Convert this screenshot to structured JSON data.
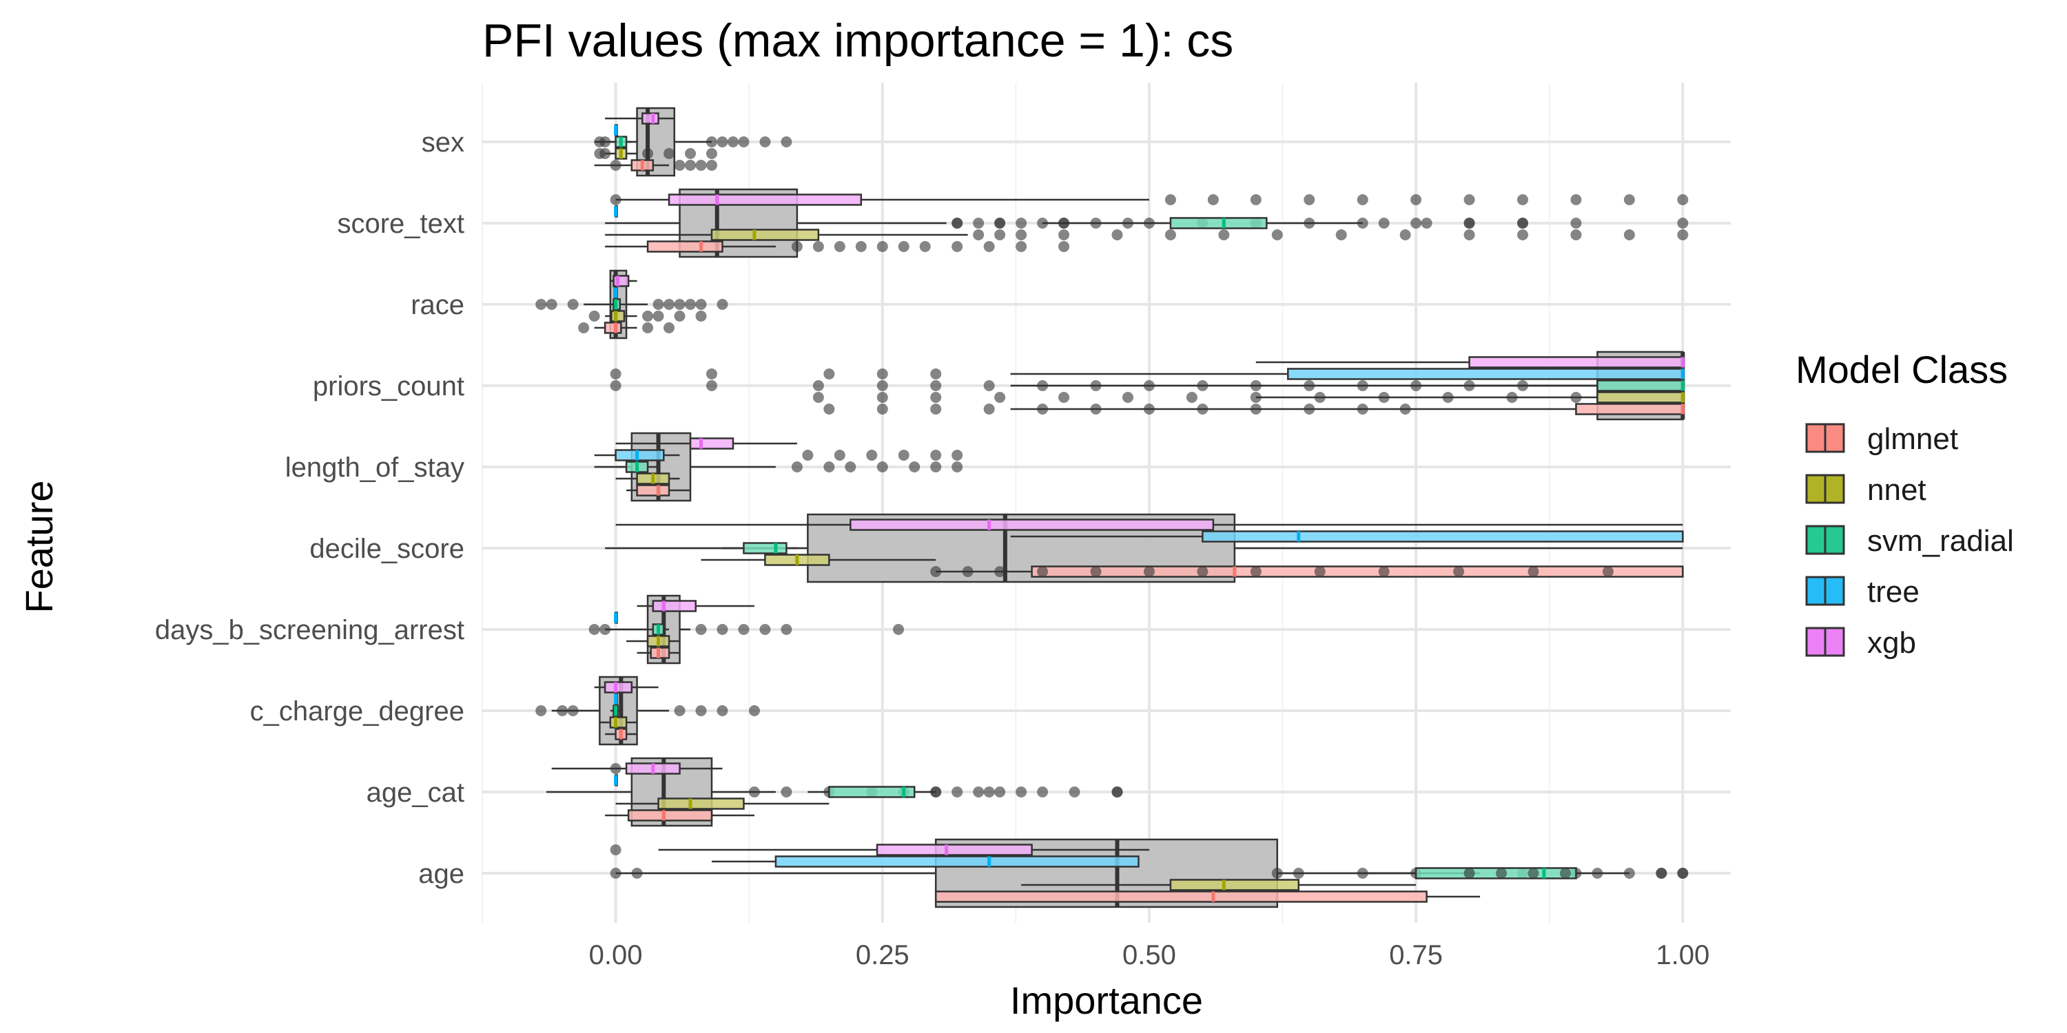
{
  "chart_data": {
    "type": "boxplot",
    "title": "PFI values (max importance = 1): cs",
    "xlabel": "Importance",
    "ylabel": "Feature",
    "xlim": [
      -0.125,
      1.045
    ],
    "x_ticks": [
      0.0,
      0.25,
      0.5,
      0.75,
      1.0
    ],
    "x_tick_labels": [
      "0.00",
      "0.25",
      "0.50",
      "0.75",
      "1.00"
    ],
    "categories": [
      "sex",
      "score_text",
      "race",
      "priors_count",
      "length_of_stay",
      "decile_score",
      "days_b_screening_arrest",
      "c_charge_degree",
      "age_cat",
      "age"
    ],
    "grid": true,
    "legend": {
      "title": "Model Class",
      "position": "right",
      "entries": [
        {
          "name": "glmnet",
          "color": "#F8766D"
        },
        {
          "name": "nnet",
          "color": "#A3A500"
        },
        {
          "name": "svm_radial",
          "color": "#00BF7D"
        },
        {
          "name": "tree",
          "color": "#00B0F6"
        },
        {
          "name": "xgb",
          "color": "#E76BF3"
        }
      ]
    },
    "overall_color": "#bfbfbf",
    "series": [
      {
        "name": "overall",
        "boxes": {
          "sex": {
            "wmin": -0.02,
            "q1": 0.02,
            "med": 0.03,
            "q3": 0.055,
            "wmax": 0.09,
            "outliers": [
              -0.015,
              -0.01,
              0.09,
              0.1,
              0.11,
              0.12,
              0.14,
              0.16
            ]
          },
          "score_text": {
            "wmin": -0.01,
            "q1": 0.06,
            "med": 0.095,
            "q3": 0.17,
            "wmax": 0.31,
            "outliers": [
              0.32,
              0.34,
              0.36,
              0.38,
              0.4,
              0.42,
              0.45,
              0.5,
              0.55,
              0.6,
              0.65,
              0.7,
              0.75,
              0.8,
              0.85,
              0.9,
              1.0
            ]
          },
          "race": {
            "wmin": -0.03,
            "q1": -0.005,
            "med": 0.0,
            "q3": 0.01,
            "wmax": 0.03,
            "outliers": [
              -0.07,
              -0.06,
              -0.04,
              0.04,
              0.05,
              0.06,
              0.07,
              0.08,
              0.1
            ]
          },
          "priors_count": {
            "wmin": 0.37,
            "q1": 0.92,
            "med": 1.0,
            "q3": 1.0,
            "wmax": 1.0,
            "outliers": [
              0.0,
              0.09,
              0.19,
              0.25,
              0.3,
              0.35,
              0.4,
              0.45,
              0.5,
              0.55,
              0.6,
              0.65,
              0.7,
              0.75,
              0.8,
              0.85
            ]
          },
          "length_of_stay": {
            "wmin": -0.02,
            "q1": 0.015,
            "med": 0.04,
            "q3": 0.07,
            "wmax": 0.15,
            "outliers": [
              0.17,
              0.2,
              0.22,
              0.25,
              0.28,
              0.3,
              0.32
            ]
          },
          "decile_score": {
            "wmin": -0.01,
            "q1": 0.18,
            "med": 0.365,
            "q3": 0.58,
            "wmax": 1.0,
            "outliers": []
          },
          "days_b_screening_arrest": {
            "wmin": -0.01,
            "q1": 0.03,
            "med": 0.045,
            "q3": 0.06,
            "wmax": 0.07,
            "outliers": [
              -0.02,
              -0.01,
              0.08,
              0.1,
              0.12,
              0.14,
              0.16,
              0.265
            ]
          },
          "c_charge_degree": {
            "wmin": -0.06,
            "q1": -0.015,
            "med": 0.005,
            "q3": 0.02,
            "wmax": 0.05,
            "outliers": [
              -0.07,
              -0.05,
              -0.04,
              0.06,
              0.08,
              0.1,
              0.13
            ]
          },
          "age_cat": {
            "wmin": -0.065,
            "q1": 0.015,
            "med": 0.045,
            "q3": 0.09,
            "wmax": 0.15,
            "outliers": [
              0.13,
              0.16,
              0.2,
              0.24,
              0.27,
              0.3,
              0.35,
              0.4,
              0.47
            ]
          },
          "age": {
            "wmin": 0.0,
            "q1": 0.3,
            "med": 0.47,
            "q3": 0.62,
            "wmax": 0.81,
            "outliers": [
              0.0,
              0.02,
              0.62,
              0.64,
              0.7,
              0.75,
              0.8,
              0.85,
              0.9,
              0.98,
              1.0
            ]
          }
        }
      },
      {
        "name": "glmnet",
        "boxes": {
          "sex": {
            "wmin": -0.02,
            "q1": 0.015,
            "med": 0.025,
            "q3": 0.035,
            "wmax": 0.05,
            "outliers": [
              0.0,
              0.06,
              0.07,
              0.08,
              0.09
            ]
          },
          "score_text": {
            "wmin": -0.01,
            "q1": 0.03,
            "med": 0.08,
            "q3": 0.1,
            "wmax": 0.15,
            "outliers": [
              0.17,
              0.19,
              0.21,
              0.23,
              0.25,
              0.27,
              0.29,
              0.32,
              0.35,
              0.38,
              0.42
            ]
          },
          "race": {
            "wmin": -0.02,
            "q1": -0.01,
            "med": 0.0,
            "q3": 0.005,
            "wmax": 0.02,
            "outliers": [
              -0.03,
              0.03,
              0.05
            ]
          },
          "priors_count": {
            "wmin": 0.37,
            "q1": 0.9,
            "med": 1.0,
            "q3": 1.0,
            "wmax": 1.0,
            "outliers": [
              0.2,
              0.25,
              0.3,
              0.35,
              0.4,
              0.45,
              0.5,
              0.55,
              0.6,
              0.65,
              0.7,
              0.74
            ]
          },
          "length_of_stay": {
            "wmin": 0.01,
            "q1": 0.02,
            "med": 0.04,
            "q3": 0.05,
            "wmax": 0.07,
            "outliers": []
          },
          "decile_score": {
            "wmin": 0.3,
            "q1": 0.39,
            "med": 0.58,
            "q3": 1.0,
            "wmax": 1.0,
            "outliers": [
              0.3,
              0.33,
              0.36,
              0.4,
              0.45,
              0.5,
              0.55,
              0.6,
              0.66,
              0.72,
              0.79,
              0.86,
              0.93
            ]
          },
          "days_b_screening_arrest": {
            "wmin": 0.02,
            "q1": 0.033,
            "med": 0.04,
            "q3": 0.05,
            "wmax": 0.06,
            "outliers": []
          },
          "c_charge_degree": {
            "wmin": -0.01,
            "q1": 0.0,
            "med": 0.005,
            "q3": 0.01,
            "wmax": 0.02,
            "outliers": []
          },
          "age_cat": {
            "wmin": -0.01,
            "q1": 0.012,
            "med": 0.045,
            "q3": 0.09,
            "wmax": 0.13,
            "outliers": []
          },
          "age": {
            "wmin": 0.3,
            "q1": 0.3,
            "med": 0.56,
            "q3": 0.76,
            "wmax": 0.81,
            "outliers": []
          }
        }
      },
      {
        "name": "nnet",
        "boxes": {
          "sex": {
            "wmin": -0.01,
            "q1": 0.0,
            "med": 0.005,
            "q3": 0.01,
            "wmax": 0.02,
            "outliers": [
              -0.015,
              -0.01,
              0.03,
              0.05,
              0.07,
              0.09
            ]
          },
          "score_text": {
            "wmin": -0.01,
            "q1": 0.09,
            "med": 0.13,
            "q3": 0.19,
            "wmax": 0.33,
            "outliers": [
              0.34,
              0.36,
              0.38,
              0.42,
              0.47,
              0.52,
              0.57,
              0.62,
              0.68,
              0.74,
              0.8,
              0.85,
              0.9,
              0.95,
              1.0
            ]
          },
          "race": {
            "wmin": -0.01,
            "q1": -0.004,
            "med": 0.0,
            "q3": 0.008,
            "wmax": 0.02,
            "outliers": [
              -0.02,
              0.03,
              0.04,
              0.06,
              0.08
            ]
          },
          "priors_count": {
            "wmin": 0.6,
            "q1": 0.92,
            "med": 1.0,
            "q3": 1.0,
            "wmax": 1.0,
            "outliers": [
              0.19,
              0.25,
              0.3,
              0.36,
              0.42,
              0.48,
              0.54,
              0.6,
              0.66,
              0.72,
              0.78,
              0.84,
              0.9
            ]
          },
          "length_of_stay": {
            "wmin": 0.0,
            "q1": 0.02,
            "med": 0.035,
            "q3": 0.05,
            "wmax": 0.06,
            "outliers": []
          },
          "decile_score": {
            "wmin": 0.08,
            "q1": 0.14,
            "med": 0.17,
            "q3": 0.2,
            "wmax": 0.3,
            "outliers": []
          },
          "days_b_screening_arrest": {
            "wmin": 0.01,
            "q1": 0.03,
            "med": 0.04,
            "q3": 0.05,
            "wmax": 0.06,
            "outliers": []
          },
          "c_charge_degree": {
            "wmin": -0.015,
            "q1": -0.005,
            "med": 0.0,
            "q3": 0.01,
            "wmax": 0.02,
            "outliers": []
          },
          "age_cat": {
            "wmin": 0.0,
            "q1": 0.04,
            "med": 0.07,
            "q3": 0.12,
            "wmax": 0.2,
            "outliers": []
          },
          "age": {
            "wmin": 0.38,
            "q1": 0.52,
            "med": 0.57,
            "q3": 0.64,
            "wmax": 0.75,
            "outliers": []
          }
        }
      },
      {
        "name": "svm_radial",
        "boxes": {
          "sex": {
            "wmin": -0.005,
            "q1": 0.0,
            "med": 0.005,
            "q3": 0.01,
            "wmax": 0.015,
            "outliers": []
          },
          "score_text": {
            "wmin": 0.4,
            "q1": 0.52,
            "med": 0.57,
            "q3": 0.61,
            "wmax": 0.7,
            "outliers": [
              0.32,
              0.36,
              0.42,
              0.48,
              0.72,
              0.76,
              0.8,
              0.85
            ]
          },
          "race": {
            "wmin": -0.005,
            "q1": -0.002,
            "med": 0.0,
            "q3": 0.004,
            "wmax": 0.01,
            "outliers": []
          },
          "priors_count": {
            "wmin": 0.8,
            "q1": 0.92,
            "med": 1.0,
            "q3": 1.0,
            "wmax": 1.0,
            "outliers": []
          },
          "length_of_stay": {
            "wmin": 0.0,
            "q1": 0.01,
            "med": 0.02,
            "q3": 0.03,
            "wmax": 0.04,
            "outliers": []
          },
          "decile_score": {
            "wmin": 0.1,
            "q1": 0.12,
            "med": 0.15,
            "q3": 0.16,
            "wmax": 0.17,
            "outliers": []
          },
          "days_b_screening_arrest": {
            "wmin": 0.03,
            "q1": 0.035,
            "med": 0.04,
            "q3": 0.045,
            "wmax": 0.05,
            "outliers": []
          },
          "c_charge_degree": {
            "wmin": -0.005,
            "q1": -0.002,
            "med": 0.0,
            "q3": 0.002,
            "wmax": 0.005,
            "outliers": []
          },
          "age_cat": {
            "wmin": 0.18,
            "q1": 0.2,
            "med": 0.27,
            "q3": 0.28,
            "wmax": 0.3,
            "outliers": [
              0.3,
              0.32,
              0.34,
              0.36,
              0.38,
              0.43,
              0.47
            ]
          },
          "age": {
            "wmin": 0.7,
            "q1": 0.75,
            "med": 0.87,
            "q3": 0.9,
            "wmax": 0.95,
            "outliers": [
              0.8,
              0.83,
              0.86,
              0.89,
              0.92,
              0.95,
              0.98,
              1.0
            ]
          }
        }
      },
      {
        "name": "tree",
        "boxes": {
          "sex": {
            "wmin": 0.0,
            "q1": 0.0,
            "med": 0.0,
            "q3": 0.0,
            "wmax": 0.0,
            "outliers": []
          },
          "score_text": {
            "wmin": 0.0,
            "q1": 0.0,
            "med": 0.0,
            "q3": 0.0,
            "wmax": 0.0,
            "outliers": []
          },
          "race": {
            "wmin": 0.0,
            "q1": 0.0,
            "med": 0.0,
            "q3": 0.0,
            "wmax": 0.0,
            "outliers": []
          },
          "priors_count": {
            "wmin": 0.37,
            "q1": 0.63,
            "med": 1.0,
            "q3": 1.0,
            "wmax": 1.0,
            "outliers": [
              0.0,
              0.09,
              0.2,
              0.25,
              0.3
            ]
          },
          "length_of_stay": {
            "wmin": -0.02,
            "q1": 0.0,
            "med": 0.02,
            "q3": 0.045,
            "wmax": 0.06,
            "outliers": [
              0.18,
              0.21,
              0.24,
              0.27,
              0.3,
              0.32
            ]
          },
          "decile_score": {
            "wmin": 0.37,
            "q1": 0.55,
            "med": 0.64,
            "q3": 1.0,
            "wmax": 1.0,
            "outliers": []
          },
          "days_b_screening_arrest": {
            "wmin": 0.0,
            "q1": 0.0,
            "med": 0.0,
            "q3": 0.0,
            "wmax": 0.0,
            "outliers": []
          },
          "c_charge_degree": {
            "wmin": 0.0,
            "q1": 0.0,
            "med": 0.0,
            "q3": 0.0,
            "wmax": 0.0,
            "outliers": []
          },
          "age_cat": {
            "wmin": 0.0,
            "q1": 0.0,
            "med": 0.0,
            "q3": 0.0,
            "wmax": 0.0,
            "outliers": []
          },
          "age": {
            "wmin": 0.09,
            "q1": 0.15,
            "med": 0.35,
            "q3": 0.49,
            "wmax": 0.49,
            "outliers": []
          }
        }
      },
      {
        "name": "xgb",
        "boxes": {
          "sex": {
            "wmin": -0.01,
            "q1": 0.025,
            "med": 0.035,
            "q3": 0.04,
            "wmax": 0.055,
            "outliers": []
          },
          "score_text": {
            "wmin": 0.0,
            "q1": 0.05,
            "med": 0.095,
            "q3": 0.23,
            "wmax": 0.5,
            "outliers": [
              0.0,
              0.52,
              0.56,
              0.6,
              0.65,
              0.7,
              0.75,
              0.8,
              0.85,
              0.9,
              0.95,
              1.0
            ]
          },
          "race": {
            "wmin": -0.005,
            "q1": -0.002,
            "med": 0.002,
            "q3": 0.012,
            "wmax": 0.02,
            "outliers": []
          },
          "priors_count": {
            "wmin": 0.6,
            "q1": 0.8,
            "med": 1.0,
            "q3": 1.0,
            "wmax": 1.0,
            "outliers": []
          },
          "length_of_stay": {
            "wmin": 0.0,
            "q1": 0.07,
            "med": 0.08,
            "q3": 0.11,
            "wmax": 0.17,
            "outliers": []
          },
          "decile_score": {
            "wmin": 0.0,
            "q1": 0.22,
            "med": 0.35,
            "q3": 0.56,
            "wmax": 1.0,
            "outliers": []
          },
          "days_b_screening_arrest": {
            "wmin": 0.02,
            "q1": 0.035,
            "med": 0.045,
            "q3": 0.075,
            "wmax": 0.13,
            "outliers": []
          },
          "c_charge_degree": {
            "wmin": -0.02,
            "q1": -0.01,
            "med": 0.0,
            "q3": 0.015,
            "wmax": 0.04,
            "outliers": []
          },
          "age_cat": {
            "wmin": -0.06,
            "q1": 0.01,
            "med": 0.035,
            "q3": 0.06,
            "wmax": 0.1,
            "outliers": [
              0.0
            ]
          },
          "age": {
            "wmin": 0.04,
            "q1": 0.245,
            "med": 0.31,
            "q3": 0.39,
            "wmax": 0.5,
            "outliers": [
              0.0
            ]
          }
        }
      }
    ]
  }
}
